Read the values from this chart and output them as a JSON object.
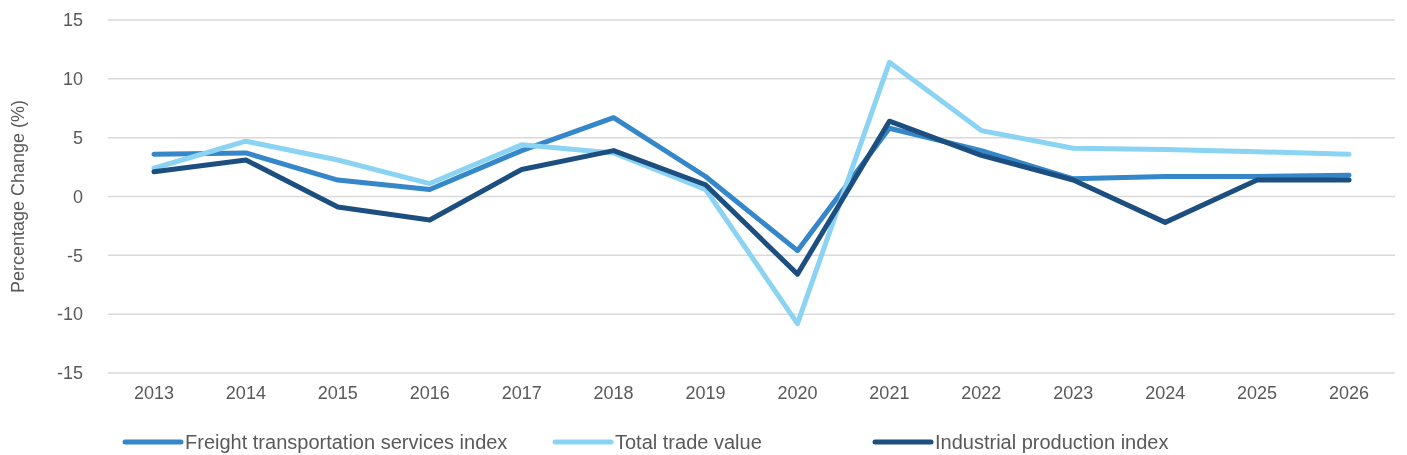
{
  "chart_data": {
    "type": "line",
    "ylabel": "Percentage Change (%)",
    "categories": [
      "2013",
      "2014",
      "2015",
      "2016",
      "2017",
      "2018",
      "2019",
      "2020",
      "2021",
      "2022",
      "2023",
      "2024",
      "2025",
      "2026"
    ],
    "series": [
      {
        "name": "Freight transportation services index",
        "color": "#3587c9",
        "values": [
          3.6,
          3.7,
          1.4,
          0.6,
          3.9,
          6.7,
          1.7,
          -4.6,
          5.8,
          3.9,
          1.5,
          1.7,
          1.7,
          1.8
        ]
      },
      {
        "name": "Total trade value",
        "color": "#8ad3f3",
        "values": [
          2.4,
          4.7,
          3.1,
          1.1,
          4.4,
          3.7,
          0.6,
          -10.8,
          11.4,
          5.6,
          4.1,
          4.0,
          3.8,
          3.6
        ]
      },
      {
        "name": "Industrial production index",
        "color": "#1c4f80",
        "values": [
          2.1,
          3.1,
          -0.9,
          -2.0,
          2.3,
          3.9,
          1.0,
          -6.6,
          6.4,
          3.5,
          1.4,
          -2.2,
          1.4,
          1.4
        ]
      }
    ],
    "ylim": [
      -15,
      15
    ],
    "yticks": [
      -15,
      -10,
      -5,
      0,
      5,
      10,
      15
    ],
    "grid": "y",
    "legend": "bottom",
    "marker": "none",
    "line_style": "solid"
  }
}
